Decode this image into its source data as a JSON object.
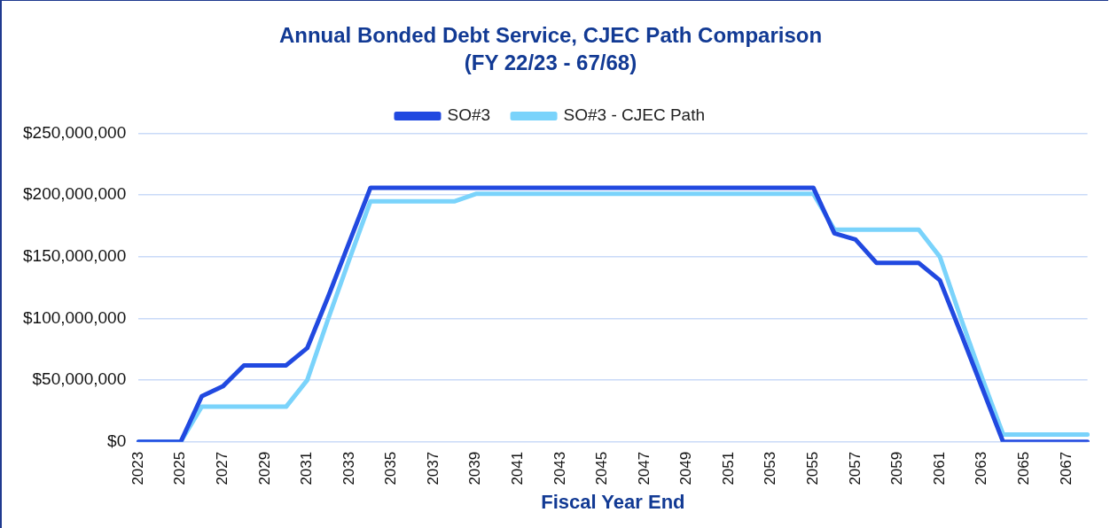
{
  "chart_data": {
    "type": "line",
    "title": "Annual Bonded Debt Service, CJEC Path Comparison",
    "subtitle": "(FY 22/23 - 67/68)",
    "xlabel": "Fiscal Year End",
    "categories": [
      "2023",
      null,
      "2025",
      null,
      "2027",
      null,
      "2029",
      null,
      "2031",
      null,
      "2033",
      null,
      "2035",
      null,
      "2037",
      null,
      "2039",
      null,
      "2041",
      null,
      "2043",
      null,
      "2045",
      null,
      "2047",
      null,
      "2049",
      null,
      "2051",
      null,
      "2053",
      null,
      "2055",
      null,
      "2057",
      null,
      "2059",
      null,
      "2061",
      null,
      "2063",
      null,
      "2065",
      null,
      "2067",
      null
    ],
    "series": [
      {
        "name": "SO#3",
        "color": "#2149e0",
        "values": [
          0,
          0,
          0,
          37000000,
          45000000,
          62000000,
          62000000,
          62000000,
          76000000,
          118000000,
          162000000,
          206000000,
          206000000,
          206000000,
          206000000,
          206000000,
          206000000,
          206000000,
          206000000,
          206000000,
          206000000,
          206000000,
          206000000,
          206000000,
          206000000,
          206000000,
          206000000,
          206000000,
          206000000,
          206000000,
          206000000,
          206000000,
          206000000,
          169000000,
          164000000,
          145000000,
          145000000,
          145000000,
          131000000,
          88000000,
          44000000,
          0,
          0,
          0,
          0,
          0
        ]
      },
      {
        "name": "SO#3 - CJEC Path",
        "color": "#7ad3fb",
        "values": [
          0,
          0,
          0,
          28500000,
          28500000,
          28500000,
          28500000,
          28500000,
          50000000,
          100000000,
          148000000,
          195000000,
          195000000,
          195000000,
          195000000,
          195000000,
          201000000,
          201000000,
          201000000,
          201000000,
          201000000,
          201000000,
          201000000,
          201000000,
          201000000,
          201000000,
          201000000,
          201000000,
          201000000,
          201000000,
          201000000,
          201000000,
          201000000,
          172000000,
          172000000,
          172000000,
          172000000,
          172000000,
          150000000,
          100000000,
          52000000,
          6000000,
          6000000,
          6000000,
          6000000,
          6000000
        ]
      }
    ],
    "ylim": [
      0,
      250000000
    ],
    "yticks": [
      {
        "value": 0,
        "label": "$0"
      },
      {
        "value": 50000000,
        "label": "$50,000,000"
      },
      {
        "value": 100000000,
        "label": "$100,000,000"
      },
      {
        "value": 150000000,
        "label": "$150,000,000"
      },
      {
        "value": 200000000,
        "label": "$200,000,000"
      },
      {
        "value": 250000000,
        "label": "$250,000,000"
      }
    ],
    "grid": "y",
    "legend": "top",
    "marker": "none",
    "line_style": "solid"
  }
}
